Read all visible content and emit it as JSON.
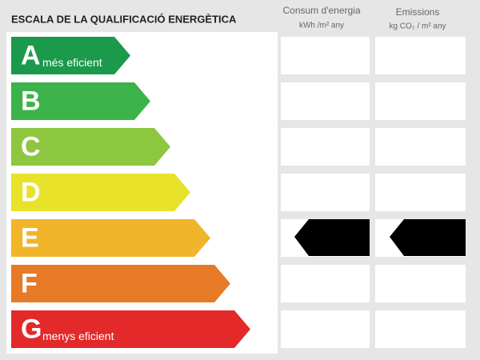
{
  "header": {
    "title": "ESCALA DE LA QUALIFICACIÓ ENERGÈTICA"
  },
  "columns": [
    {
      "title": "Consum d'energia",
      "unit": "kWh /m² any"
    },
    {
      "title": "Emissions",
      "unit": "kg CO₂ / m² any"
    }
  ],
  "classes": [
    {
      "letter": "A",
      "label": "més eficient",
      "color": "#1a9a4a"
    },
    {
      "letter": "B",
      "color": "#3cb34a"
    },
    {
      "letter": "C",
      "color": "#8dc63f"
    },
    {
      "letter": "D",
      "color": "#e8e22a"
    },
    {
      "letter": "E",
      "color": "#f1b52b"
    },
    {
      "letter": "F",
      "color": "#e67a26"
    },
    {
      "letter": "G",
      "label": "menys eficient",
      "color": "#e3292a"
    }
  ]
}
